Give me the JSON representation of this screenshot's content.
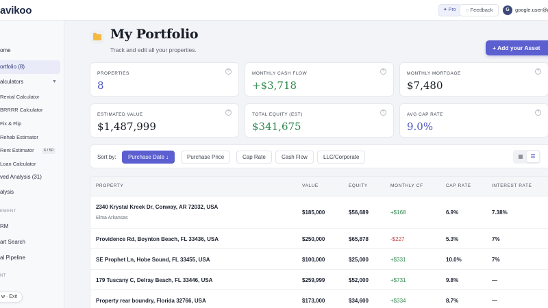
{
  "topbar": {
    "logo": "avikoo",
    "pro_label": "✦ Pro",
    "feedback_label": "◌ Feedback",
    "avatar_initial": "G",
    "user_email": "google.user@g"
  },
  "sidebar": {
    "items": [
      {
        "label": "ome"
      },
      {
        "label": "ortfolio (8)"
      },
      {
        "label": "alculators"
      },
      {
        "label": "Rental Calculator"
      },
      {
        "label": "BRRRR Calculator"
      },
      {
        "label": "Fix & Flip"
      },
      {
        "label": "Rehab Estimator"
      },
      {
        "label": "Rent Estimator",
        "badge": "6 / 50"
      },
      {
        "label": "Loan Calculator"
      },
      {
        "label": "ved Analysis (31)"
      },
      {
        "label": "alysis"
      },
      {
        "label": "RM"
      },
      {
        "label": "art Search"
      },
      {
        "label": "al Pipeline"
      }
    ],
    "sections": [
      "EMENT",
      "NT"
    ],
    "exit_label": "w · Exit"
  },
  "header": {
    "title": "My Portfolio",
    "subtitle": "Track and edit all your properties.",
    "add_button": "+ Add your Asset",
    "icon": "folder-icon"
  },
  "stats": [
    {
      "label": "PROPERTIES",
      "value": "8",
      "tone": "blue"
    },
    {
      "label": "MONTHLY CASH FLOW",
      "value": "+$3,718",
      "tone": "green"
    },
    {
      "label": "MONTHLY MORTGAGE",
      "value": "$7,480",
      "tone": "dark"
    },
    {
      "label": "ESTIMATED VALUE",
      "value": "$1,487,999",
      "tone": "dark"
    },
    {
      "label": "TOTAL EQUITY (EST)",
      "value": "$341,675",
      "tone": "green"
    },
    {
      "label": "AVG CAP RATE",
      "value": "9.0%",
      "tone": "blue"
    }
  ],
  "sort": {
    "label": "Sort by:",
    "options": [
      "Purchase Date ↓",
      "Purchase Price",
      "Cap Rate",
      "Cash Flow",
      "LLC/Corporate"
    ],
    "active_index": 0
  },
  "table": {
    "columns": [
      "PROPERTY",
      "VALUE",
      "EQUITY",
      "MONTHLY CF",
      "CAP RATE",
      "INTEREST RATE"
    ],
    "rows": [
      {
        "property": "2340 Krystal Kreek Dr, Conway, AR 72032, USA",
        "sub": "Elma Arkansas",
        "value": "$185,000",
        "equity": "$56,689",
        "cf": "+$168",
        "cap": "6.9%",
        "interest": "7.38%"
      },
      {
        "property": "Providence Rd, Boynton Beach, FL 33436, USA",
        "sub": "",
        "value": "$250,000",
        "equity": "$65,878",
        "cf": "-$227",
        "cap": "5.3%",
        "interest": "7%"
      },
      {
        "property": "SE Prophet Ln, Hobe Sound, FL 33455, USA",
        "sub": "",
        "value": "$100,000",
        "equity": "$25,000",
        "cf": "+$331",
        "cap": "10.0%",
        "interest": "7%"
      },
      {
        "property": "179 Tuscany C, Delray Beach, FL 33446, USA",
        "sub": "",
        "value": "$259,999",
        "equity": "$52,000",
        "cf": "+$731",
        "cap": "9.8%",
        "interest": "—"
      },
      {
        "property": "Property rear boundry, Florida 32766, USA",
        "sub": "",
        "value": "$173,000",
        "equity": "$34,600",
        "cf": "+$334",
        "cap": "8.7%",
        "interest": "—"
      }
    ]
  },
  "colors": {
    "accent": "#5b5fcf",
    "positive": "#2f8a4e",
    "negative": "#c43d3d"
  }
}
